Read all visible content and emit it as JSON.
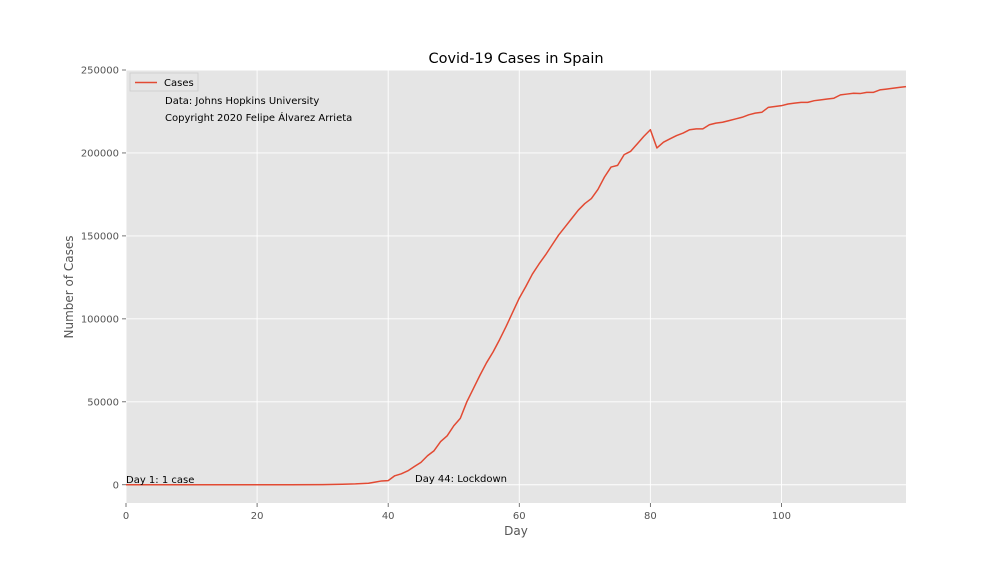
{
  "chart_data": {
    "type": "line",
    "title": "Covid-19 Cases in Spain",
    "xlabel": "Day",
    "ylabel": "Number of Cases",
    "xlim": [
      0,
      119
    ],
    "ylim": [
      -11000,
      250000
    ],
    "grid": true,
    "legend_position": "top-left",
    "background_color": "#e5e5e5",
    "grid_color": "#ffffff",
    "x_ticks": [
      0,
      20,
      40,
      60,
      80,
      100
    ],
    "x_tick_labels": [
      "0",
      "20",
      "40",
      "60",
      "80",
      "100"
    ],
    "y_ticks": [
      0,
      50000,
      100000,
      150000,
      200000,
      250000
    ],
    "y_tick_labels": [
      "0",
      "50000",
      "100000",
      "150000",
      "200000",
      "250000"
    ],
    "legend_entries": [
      "Cases",
      "Data: Johns Hopkins University",
      "Copyright 2020 Felipe Álvarez Arrieta"
    ],
    "annotations": [
      {
        "text": "Day 1: 1 case",
        "x": 0,
        "y": 1
      },
      {
        "text": "Day 44: Lockdown",
        "x": 44,
        "y": 1000
      }
    ],
    "series": [
      {
        "name": "Cases",
        "color": "#e24a33",
        "x": [
          0,
          10,
          20,
          25,
          30,
          33,
          35,
          37,
          38,
          39,
          40,
          41,
          42,
          43,
          44,
          45,
          46,
          47,
          48,
          49,
          50,
          51,
          52,
          53,
          54,
          55,
          56,
          57,
          58,
          59,
          60,
          61,
          62,
          63,
          64,
          65,
          66,
          67,
          68,
          69,
          70,
          71,
          72,
          73,
          74,
          75,
          76,
          77,
          78,
          79,
          80,
          81,
          82,
          83,
          84,
          85,
          86,
          87,
          88,
          89,
          90,
          91,
          92,
          93,
          94,
          95,
          96,
          97,
          98,
          99,
          100,
          101,
          102,
          103,
          104,
          105,
          106,
          107,
          108,
          109,
          110,
          111,
          112,
          113,
          114,
          115,
          116,
          117,
          118,
          119
        ],
        "y": [
          1,
          2,
          2,
          10,
          100,
          300,
          500,
          900,
          1600,
          2300,
          2500,
          5400,
          6600,
          8400,
          11000,
          13500,
          17500,
          20500,
          26000,
          29500,
          35500,
          40000,
          50000,
          58000,
          66000,
          73500,
          80000,
          87500,
          95500,
          104000,
          112500,
          119500,
          127000,
          133000,
          138500,
          144500,
          150500,
          155500,
          160500,
          165500,
          169500,
          172500,
          178000,
          185500,
          191500,
          192500,
          199000,
          201000,
          205500,
          210000,
          214000,
          203000,
          206500,
          208500,
          210500,
          212000,
          214000,
          214500,
          214500,
          217000,
          218000,
          218500,
          219500,
          220500,
          221500,
          223000,
          224000,
          224500,
          227500,
          228000,
          228500,
          229500,
          230000,
          230500,
          230500,
          231500,
          232000,
          232500,
          233000,
          235000,
          235500,
          236000,
          235800,
          236500,
          236500,
          238000,
          238500,
          239000,
          239500,
          240000
        ]
      }
    ]
  }
}
